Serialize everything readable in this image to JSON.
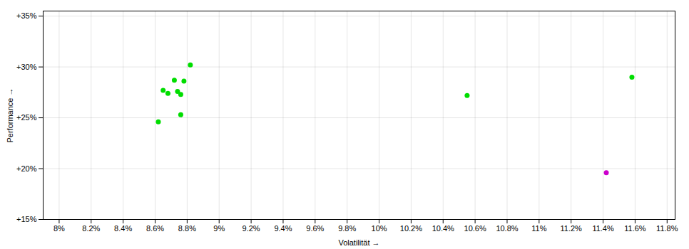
{
  "chart_data": {
    "type": "scatter",
    "xlabel": "Volatilität",
    "ylabel": "Performance",
    "xlim": [
      0.079,
      0.1185
    ],
    "ylim": [
      0.15,
      0.355
    ],
    "xticks": [
      {
        "value": 0.08,
        "label": "8%"
      },
      {
        "value": 0.082,
        "label": "8.2%"
      },
      {
        "value": 0.084,
        "label": "8.4%"
      },
      {
        "value": 0.086,
        "label": "8.6%"
      },
      {
        "value": 0.088,
        "label": "8.8%"
      },
      {
        "value": 0.09,
        "label": "9%"
      },
      {
        "value": 0.092,
        "label": "9.2%"
      },
      {
        "value": 0.094,
        "label": "9.4%"
      },
      {
        "value": 0.096,
        "label": "9.6%"
      },
      {
        "value": 0.098,
        "label": "9.8%"
      },
      {
        "value": 0.1,
        "label": "10%"
      },
      {
        "value": 0.102,
        "label": "10.2%"
      },
      {
        "value": 0.104,
        "label": "10.4%"
      },
      {
        "value": 0.106,
        "label": "10.6%"
      },
      {
        "value": 0.108,
        "label": "10.8%"
      },
      {
        "value": 0.11,
        "label": "11%"
      },
      {
        "value": 0.112,
        "label": "11.2%"
      },
      {
        "value": 0.114,
        "label": "11.4%"
      },
      {
        "value": 0.116,
        "label": "11.6%"
      },
      {
        "value": 0.118,
        "label": "11.8%"
      }
    ],
    "yticks": [
      {
        "value": 0.15,
        "label": "+15%"
      },
      {
        "value": 0.2,
        "label": "+20%"
      },
      {
        "value": 0.25,
        "label": "+25%"
      },
      {
        "value": 0.3,
        "label": "+30%"
      },
      {
        "value": 0.35,
        "label": "+35%"
      }
    ],
    "grid": true,
    "series": [
      {
        "color": "#00dd00",
        "x": [
          0.0882,
          0.0872,
          0.0878,
          0.0865,
          0.0874,
          0.0868,
          0.0876,
          0.0876,
          0.0862,
          0.1055,
          0.1158
        ],
        "values": [
          0.302,
          0.287,
          0.286,
          0.277,
          0.276,
          0.274,
          0.273,
          0.253,
          0.246,
          0.272,
          0.29
        ]
      },
      {
        "color": "#cc00cc",
        "x": [
          0.1142
        ],
        "values": [
          0.196
        ]
      }
    ]
  }
}
